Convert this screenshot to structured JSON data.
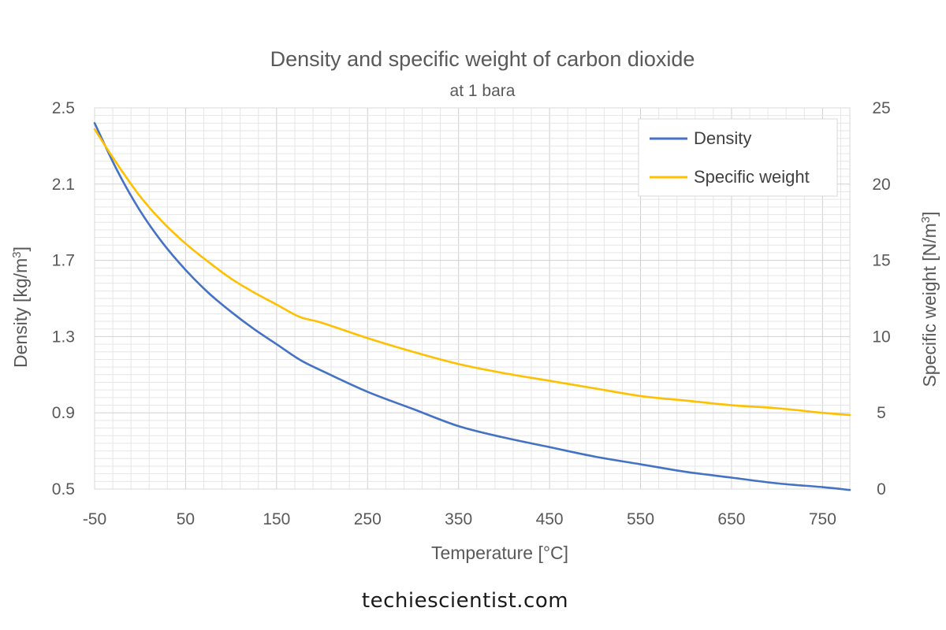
{
  "chart_data": {
    "type": "line",
    "title": "Density and specific weight of carbon dioxide",
    "subtitle": "at 1 bara",
    "xlabel": "Temperature [°C]",
    "ylabel_left": "Density [kg/m3]",
    "ylabel_left_base": "Density [kg/m",
    "ylabel_left_sup": "3",
    "ylabel_left_end": "]",
    "ylabel_right": "Specific weight [N/m3]",
    "ylabel_right_base": "Specific weight [N/m",
    "ylabel_right_sup": "3",
    "ylabel_right_end": "]",
    "xlim": [
      -50,
      780
    ],
    "ylim_left": [
      0.5,
      2.5
    ],
    "ylim_right": [
      0,
      25
    ],
    "x_ticks": [
      "-50",
      "50",
      "150",
      "250",
      "350",
      "450",
      "550",
      "650",
      "750"
    ],
    "y_left_ticks": [
      "0.5",
      "0.9",
      "1.3",
      "1.7",
      "2.1",
      "2.5"
    ],
    "y_right_ticks": [
      "0",
      "5",
      "10",
      "15",
      "20",
      "25"
    ],
    "grid": true,
    "legend_position": "top-right",
    "series": [
      {
        "name": "Density",
        "axis": "left",
        "color": "#4472C4",
        "x": [
          -50,
          -25,
          0,
          25,
          50,
          75,
          100,
          125,
          150,
          175,
          200,
          250,
          300,
          350,
          400,
          450,
          500,
          550,
          600,
          650,
          700,
          750,
          780
        ],
        "y": [
          2.42,
          2.17,
          1.96,
          1.79,
          1.65,
          1.53,
          1.43,
          1.34,
          1.26,
          1.18,
          1.12,
          1.01,
          0.92,
          0.83,
          0.77,
          0.72,
          0.67,
          0.63,
          0.59,
          0.56,
          0.53,
          0.51,
          0.495
        ]
      },
      {
        "name": "Specific weight",
        "axis": "right",
        "color": "#FFC000",
        "x": [
          -50,
          -25,
          0,
          25,
          50,
          75,
          100,
          125,
          150,
          175,
          200,
          250,
          300,
          350,
          400,
          450,
          500,
          550,
          600,
          650,
          700,
          750,
          780
        ],
        "y": [
          23.6,
          21.3,
          19.2,
          17.5,
          16.1,
          14.9,
          13.8,
          12.9,
          12.1,
          11.3,
          10.9,
          9.9,
          9.0,
          8.2,
          7.6,
          7.1,
          6.6,
          6.1,
          5.8,
          5.5,
          5.3,
          5.0,
          4.85
        ]
      }
    ]
  },
  "footer": {
    "site": "techiescientist.com"
  }
}
